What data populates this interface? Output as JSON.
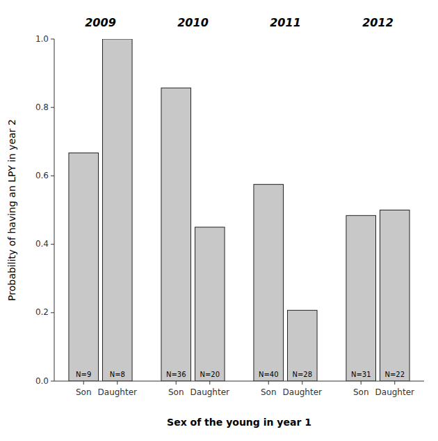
{
  "chart_data": {
    "type": "bar",
    "xlabel": "Sex of the young in year 1",
    "ylabel": "Probability of having an LPY in year 2",
    "categories": [
      "2009",
      "2010",
      "2011",
      "2012"
    ],
    "series": [
      {
        "name": "Son",
        "color": "#c8c8c8",
        "values": [
          0.667,
          0.857,
          0.575,
          0.484
        ],
        "n_labels": [
          "N=9",
          "N=36",
          "N=40",
          "N=31"
        ]
      },
      {
        "name": "Daughter",
        "color": "#c8c8c8",
        "values": [
          1.0,
          0.45,
          0.207,
          0.5
        ],
        "n_labels": [
          "N=8",
          "N=20",
          "N=28",
          "N=22"
        ]
      }
    ],
    "ylim": [
      0.0,
      1.0
    ],
    "yticks": [
      {
        "value": 0.0,
        "label": "0.0"
      },
      0.2,
      0.4,
      0.6,
      0.8,
      {
        "value": 1.0,
        "label": "1.0"
      }
    ],
    "grid": false
  }
}
